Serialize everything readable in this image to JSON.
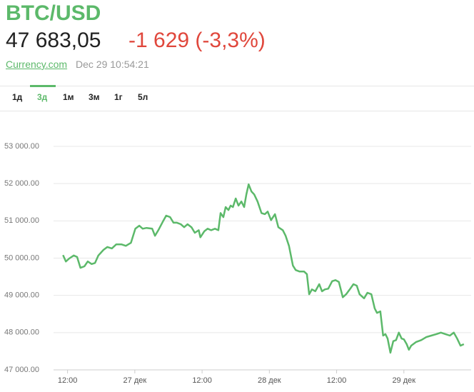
{
  "header": {
    "title": "BTC/USD",
    "price": "47 683,05",
    "change": "-1 629 (-3,3%)",
    "source": "Currency.com",
    "timestamp": "Dec 29 10:54:21"
  },
  "tabs": [
    "1д",
    "3д",
    "1м",
    "3м",
    "1г",
    "5л"
  ],
  "chart_data": {
    "type": "line",
    "color": "#5cb96a",
    "grid": true,
    "xlim": [
      9.5,
      84
    ],
    "xticks": [
      {
        "value": 12,
        "label": "12:00"
      },
      {
        "value": 24,
        "label": "27 дек"
      },
      {
        "value": 36,
        "label": "12:00"
      },
      {
        "value": 48,
        "label": "28 дек"
      },
      {
        "value": 60,
        "label": "12:00"
      },
      {
        "value": 72,
        "label": "29 дек"
      }
    ],
    "ylim": [
      47000,
      53000
    ],
    "yticks": [
      {
        "value": 47000,
        "label": "47 000.00"
      },
      {
        "value": 48000,
        "label": "48 000.00"
      },
      {
        "value": 49000,
        "label": "49 000.00"
      },
      {
        "value": 50000,
        "label": "50 000.00"
      },
      {
        "value": 51000,
        "label": "51 000.00"
      },
      {
        "value": 52000,
        "label": "52 000.00"
      },
      {
        "value": 53000,
        "label": "53 000.00"
      }
    ],
    "x": [
      11.2,
      11.7,
      12.3,
      13.1,
      13.7,
      14.3,
      15.0,
      15.6,
      16.3,
      16.9,
      17.5,
      18.4,
      19.1,
      19.9,
      20.7,
      21.6,
      22.4,
      23.3,
      24.1,
      24.8,
      25.4,
      26.1,
      27.1,
      27.6,
      28.2,
      29.0,
      29.6,
      30.3,
      30.9,
      31.5,
      32.2,
      32.8,
      33.4,
      34.1,
      34.7,
      35.4,
      35.7,
      36.4,
      37.0,
      37.6,
      38.3,
      38.9,
      39.3,
      39.8,
      40.2,
      40.7,
      41.1,
      41.5,
      42.0,
      42.5,
      43.0,
      43.5,
      43.9,
      44.3,
      44.8,
      45.3,
      45.9,
      46.6,
      47.2,
      47.7,
      48.3,
      49.0,
      49.6,
      50.4,
      50.9,
      51.5,
      52.2,
      52.7,
      53.4,
      54.2,
      54.7,
      55.1,
      55.6,
      56.2,
      56.9,
      57.4,
      57.9,
      58.5,
      59.2,
      59.8,
      60.4,
      61.1,
      61.7,
      62.3,
      63.0,
      63.6,
      64.1,
      64.9,
      65.5,
      66.2,
      66.8,
      67.2,
      67.8,
      68.3,
      68.7,
      69.1,
      69.6,
      70.1,
      70.6,
      71.1,
      71.6,
      72.0,
      72.5,
      72.9,
      73.3,
      74.2,
      75.1,
      76.0,
      76.9,
      77.8,
      78.6,
      79.4,
      80.2,
      80.9,
      81.5,
      82.1,
      82.7
    ],
    "values": [
      50080,
      49910,
      49990,
      50070,
      50030,
      49740,
      49780,
      49910,
      49840,
      49870,
      50070,
      50220,
      50300,
      50260,
      50370,
      50370,
      50330,
      50410,
      50790,
      50870,
      50790,
      50810,
      50790,
      50600,
      50750,
      50980,
      51140,
      51100,
      50950,
      50950,
      50910,
      50830,
      50910,
      50830,
      50680,
      50750,
      50560,
      50720,
      50790,
      50750,
      50790,
      50750,
      51210,
      51100,
      51370,
      51290,
      51410,
      51370,
      51600,
      51410,
      51520,
      51370,
      51710,
      51980,
      51790,
      51710,
      51520,
      51210,
      51180,
      51250,
      51020,
      51180,
      50830,
      50750,
      50600,
      50330,
      49800,
      49680,
      49640,
      49640,
      49570,
      49030,
      49160,
      49110,
      49300,
      49110,
      49160,
      49180,
      49380,
      49410,
      49360,
      48950,
      49030,
      49150,
      49300,
      49260,
      49030,
      48920,
      49070,
      49030,
      48650,
      48530,
      48570,
      47920,
      47960,
      47840,
      47460,
      47770,
      47800,
      48000,
      47840,
      47820,
      47690,
      47540,
      47650,
      47750,
      47800,
      47880,
      47920,
      47960,
      48000,
      47960,
      47920,
      48000,
      47840,
      47650,
      47690
    ]
  }
}
